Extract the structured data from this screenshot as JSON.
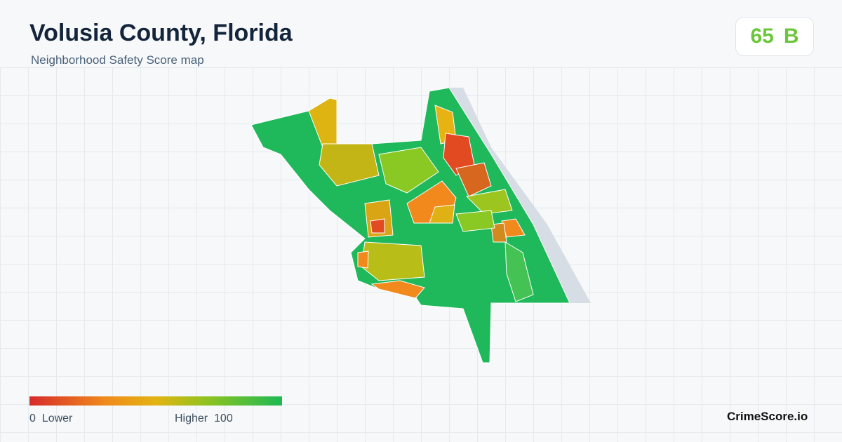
{
  "header": {
    "title": "Volusia County, Florida",
    "subtitle": "Neighborhood Safety Score map"
  },
  "score": {
    "value": 65,
    "grade": "B"
  },
  "legend": {
    "min": 0,
    "min_label": "Lower",
    "max_label": "Higher",
    "max": 100
  },
  "footer": {
    "brand": "CrimeScore.io"
  }
}
